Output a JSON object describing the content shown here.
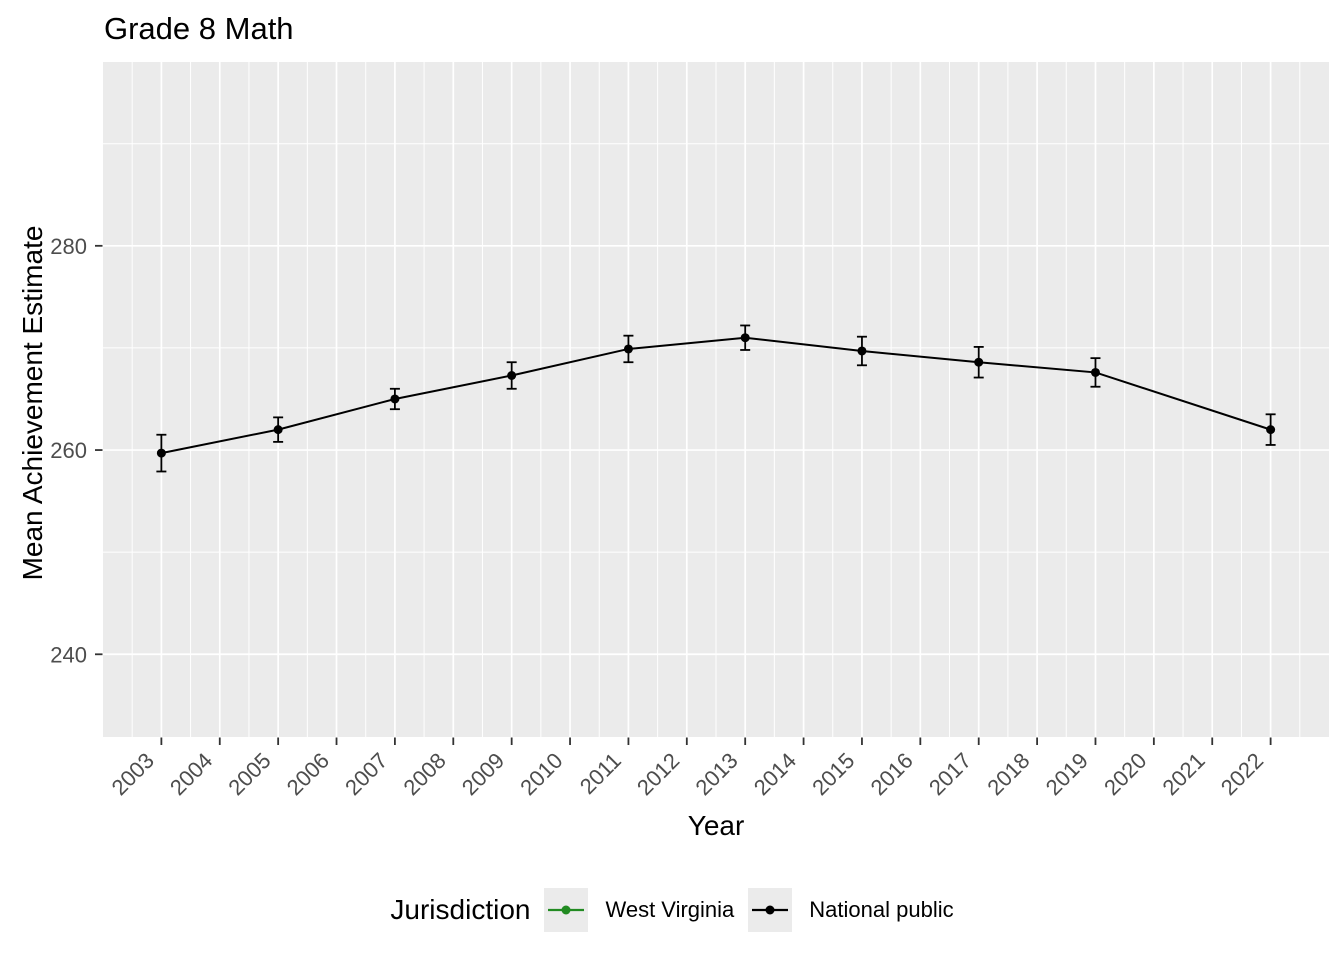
{
  "chart_data": {
    "type": "line",
    "title": "Grade 8 Math",
    "xlabel": "Year",
    "ylabel": "Mean Achievement Estimate",
    "legend_title": "Jurisdiction",
    "legend_position": "bottom",
    "grid": true,
    "panel_bg": "#EBEBEB",
    "grid_color": "#FFFFFF",
    "tick_label_color": "#4D4D4D",
    "tick_mark_color": "#333333",
    "x_tick_labels": [
      "2003",
      "2004",
      "2005",
      "2006",
      "2007",
      "2008",
      "2009",
      "2010",
      "2011",
      "2012",
      "2013",
      "2014",
      "2015",
      "2016",
      "2017",
      "2018",
      "2019",
      "2020",
      "2021",
      "2022"
    ],
    "y_ticks": [
      240,
      260,
      280
    ],
    "y_minor_ticks": [
      250,
      270,
      290
    ],
    "x_tick_angle": 45,
    "xlim": [
      2002.0,
      2023.0
    ],
    "ylim": [
      231.9,
      298.0
    ],
    "series": [
      {
        "name": "West Virginia",
        "color": "#228B22",
        "visible_in_plot": false,
        "x": [],
        "values": [],
        "errors": []
      },
      {
        "name": "National public",
        "color": "#000000",
        "visible_in_plot": true,
        "x": [
          2003,
          2005,
          2007,
          2009,
          2011,
          2013,
          2015,
          2017,
          2019,
          2022
        ],
        "values": [
          259.7,
          262.0,
          265.0,
          267.3,
          269.9,
          271.0,
          269.7,
          268.6,
          267.6,
          262.0
        ],
        "errors": [
          1.8,
          1.2,
          1.0,
          1.3,
          1.3,
          1.2,
          1.4,
          1.5,
          1.4,
          1.5
        ]
      }
    ]
  }
}
